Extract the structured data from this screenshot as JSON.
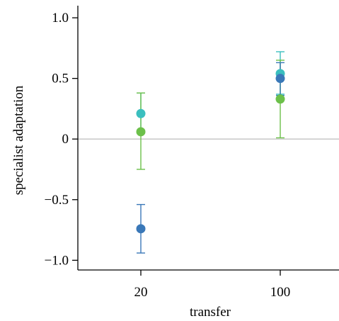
{
  "chart_data": {
    "type": "scatter",
    "title": "",
    "xlabel": "transfer",
    "ylabel": "specialist adaptation",
    "categories": [
      "20",
      "100"
    ],
    "ylim": [
      -1.08,
      1.1
    ],
    "y_ticks": [
      "1.0",
      "0.5",
      "0",
      "−0.5",
      "−1.0"
    ],
    "y_tick_values": [
      1.0,
      0.5,
      0,
      -0.5,
      -1.0
    ],
    "reference_line": 0,
    "grid": false,
    "legend": "none",
    "series": [
      {
        "color": "#3bbfbf",
        "values": [
          0.21,
          0.54
        ],
        "error_low": [
          0.05,
          0.37
        ],
        "error_high": [
          0.38,
          0.72
        ]
      },
      {
        "color": "#6cc04a",
        "values": [
          0.06,
          0.33
        ],
        "error_low": [
          -0.25,
          0.01
        ],
        "error_high": [
          0.38,
          0.65
        ]
      },
      {
        "color": "#3a78b8",
        "values": [
          -0.74,
          0.5
        ],
        "error_low": [
          -0.94,
          0.36
        ],
        "error_high": [
          -0.54,
          0.63
        ]
      }
    ]
  }
}
